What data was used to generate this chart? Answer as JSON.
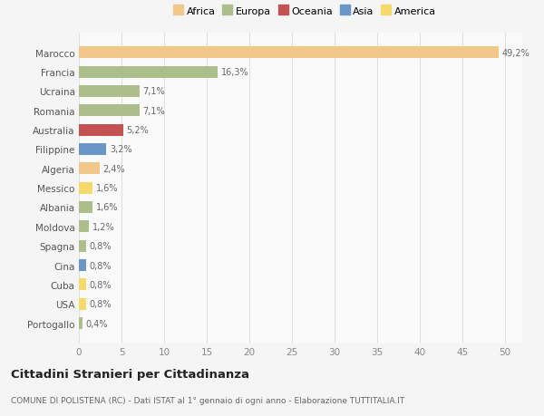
{
  "countries": [
    "Marocco",
    "Francia",
    "Ucraina",
    "Romania",
    "Australia",
    "Filippine",
    "Algeria",
    "Messico",
    "Albania",
    "Moldova",
    "Spagna",
    "Cina",
    "Cuba",
    "USA",
    "Portogallo"
  ],
  "values": [
    49.2,
    16.3,
    7.1,
    7.1,
    5.2,
    3.2,
    2.4,
    1.6,
    1.6,
    1.2,
    0.8,
    0.8,
    0.8,
    0.8,
    0.4
  ],
  "labels": [
    "49,2%",
    "16,3%",
    "7,1%",
    "7,1%",
    "5,2%",
    "3,2%",
    "2,4%",
    "1,6%",
    "1,6%",
    "1,2%",
    "0,8%",
    "0,8%",
    "0,8%",
    "0,8%",
    "0,4%"
  ],
  "colors": [
    "#F2C88A",
    "#ABBE8C",
    "#ABBE8C",
    "#ABBE8C",
    "#C45252",
    "#6B96C8",
    "#F2C88A",
    "#F5D96A",
    "#ABBE8C",
    "#ABBE8C",
    "#ABBE8C",
    "#6B96C8",
    "#F5D96A",
    "#F5D96A",
    "#ABBE8C"
  ],
  "continents": [
    "Africa",
    "Europa",
    "Oceania",
    "Asia",
    "America"
  ],
  "continent_colors": [
    "#F2C88A",
    "#ABBE8C",
    "#C45252",
    "#6B96C8",
    "#F5D96A"
  ],
  "title": "Cittadini Stranieri per Cittadinanza",
  "subtitle": "COMUNE DI POLISTENA (RC) - Dati ISTAT al 1° gennaio di ogni anno - Elaborazione TUTTITALIA.IT",
  "xlim": [
    0,
    52
  ],
  "xticks": [
    0,
    5,
    10,
    15,
    20,
    25,
    30,
    35,
    40,
    45,
    50
  ],
  "bg_color": "#f5f5f5",
  "plot_bg_color": "#fafafa",
  "grid_color": "#e0e0e0",
  "bar_height": 0.6
}
